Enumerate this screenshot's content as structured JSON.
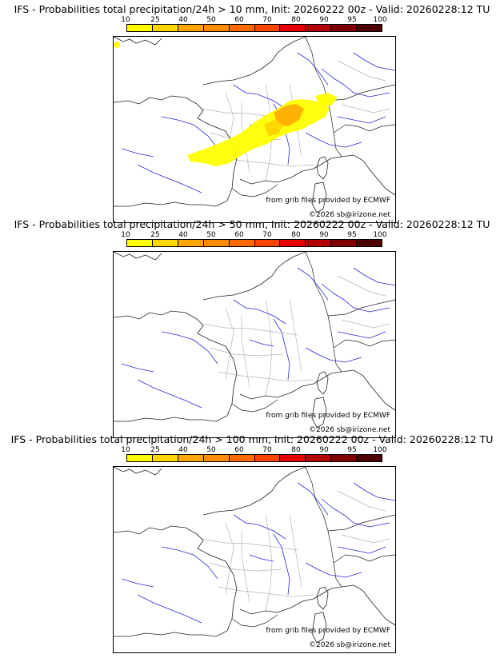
{
  "colorbar": {
    "labels": [
      "10",
      "25",
      "40",
      "50",
      "60",
      "70",
      "80",
      "90",
      "95",
      "100"
    ],
    "colors": [
      "#ffff00",
      "#ffd700",
      "#ffa500",
      "#ff8c00",
      "#ff6a00",
      "#ff4500",
      "#e60000",
      "#b30000",
      "#800000",
      "#4d0000"
    ]
  },
  "panels": [
    {
      "title": "IFS - Probabilities total precipitation/24h > 10 mm, Init: 20260222 00z - Valid: 20260228:12 TU",
      "credit_source": "from grib files provided by ECMWF",
      "credit_author": "©2026 sb@irizone.net",
      "has_precip": true
    },
    {
      "title": "IFS - Probabilities total precipitation/24h > 50 mm, Init: 20260222 00z - Valid: 20260228:12 TU",
      "credit_source": "from grib files provided by ECMWF",
      "credit_author": "©2026 sb@irizone.net",
      "has_precip": false
    },
    {
      "title": "IFS - Probabilities total precipitation/24h > 100 mm, Init: 20260222 00z - Valid: 20260228:12 TU",
      "credit_source": "from grib files provided by ECMWF",
      "credit_author": "©2026 sb@irizone.net",
      "has_precip": false
    }
  ]
}
